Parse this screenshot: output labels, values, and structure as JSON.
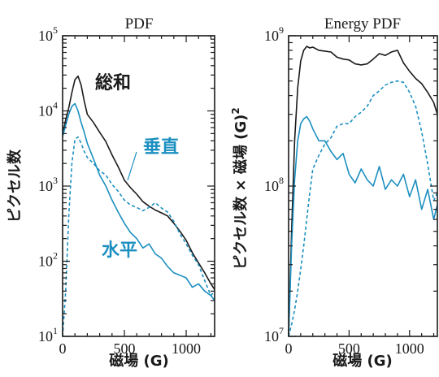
{
  "colors": {
    "black": "#1a1a1a",
    "blue": "#1b8fc0"
  },
  "chart_data": [
    {
      "type": "line",
      "title": "PDF",
      "xlabel": "磁場 (G)",
      "ylabel": "ピクセル数",
      "xlim": [
        0,
        1230
      ],
      "ylim": [
        10,
        100000
      ],
      "log_y": true,
      "x_ticks": [
        "0",
        "500",
        "1000"
      ],
      "y_ticks": [
        {
          "base": "10",
          "exp": "1"
        },
        {
          "base": "10",
          "exp": "2"
        },
        {
          "base": "10",
          "exp": "3"
        },
        {
          "base": "10",
          "exp": "4"
        },
        {
          "base": "10",
          "exp": "5"
        }
      ],
      "annotations": {
        "total": "総和",
        "vertical": "垂直",
        "horizontal": "水平"
      },
      "series": [
        {
          "name": "総和",
          "style": "solid",
          "color": "black",
          "x": [
            0,
            25,
            50,
            75,
            100,
            125,
            150,
            175,
            200,
            250,
            300,
            350,
            400,
            450,
            500,
            550,
            600,
            650,
            700,
            750,
            800,
            850,
            900,
            950,
            1000,
            1050,
            1100,
            1150,
            1200,
            1230
          ],
          "values": [
            4800,
            7600,
            11000,
            17500,
            26000,
            29000,
            22000,
            13500,
            9000,
            7000,
            5200,
            3900,
            2600,
            1800,
            1200,
            950,
            780,
            620,
            540,
            480,
            440,
            400,
            320,
            250,
            190,
            130,
            95,
            70,
            50,
            42
          ]
        },
        {
          "name": "垂直",
          "style": "dashed",
          "color": "blue",
          "x": [
            0,
            25,
            50,
            75,
            100,
            125,
            150,
            175,
            200,
            250,
            300,
            350,
            400,
            450,
            500,
            550,
            600,
            650,
            700,
            750,
            800,
            850,
            900,
            950,
            1000,
            1050,
            1100,
            1150,
            1200,
            1230
          ],
          "values": [
            10,
            40,
            400,
            2000,
            4200,
            4500,
            3700,
            2900,
            2400,
            2000,
            1600,
            1400,
            1050,
            850,
            650,
            560,
            520,
            470,
            520,
            600,
            510,
            450,
            340,
            230,
            170,
            120,
            90,
            55,
            35,
            40
          ]
        },
        {
          "name": "水平",
          "style": "solid",
          "color": "blue",
          "x": [
            0,
            25,
            50,
            75,
            100,
            125,
            150,
            175,
            200,
            250,
            300,
            350,
            400,
            450,
            500,
            550,
            600,
            650,
            700,
            750,
            800,
            850,
            900,
            950,
            1000,
            1050,
            1100,
            1150,
            1200,
            1230
          ],
          "values": [
            4500,
            6500,
            9000,
            11500,
            12500,
            10000,
            7000,
            5200,
            3700,
            2300,
            1400,
            1000,
            650,
            450,
            320,
            240,
            200,
            150,
            170,
            125,
            110,
            85,
            70,
            65,
            60,
            45,
            50,
            40,
            35,
            30
          ]
        }
      ]
    },
    {
      "type": "line",
      "title": "Energy PDF",
      "xlabel": "磁場 (G)",
      "ylabel": "ピクセル数 × 磁場 (G)",
      "ylabel_exp": "2",
      "xlim": [
        0,
        1230
      ],
      "ylim": [
        10000000,
        1000000000
      ],
      "log_y": true,
      "x_ticks": [
        "0",
        "500",
        "1000"
      ],
      "y_ticks": [
        {
          "base": "10",
          "exp": "7"
        },
        {
          "base": "10",
          "exp": "8"
        },
        {
          "base": "10",
          "exp": "9"
        }
      ],
      "series": [
        {
          "name": "総和",
          "style": "solid",
          "color": "black",
          "x": [
            0,
            25,
            50,
            75,
            100,
            125,
            150,
            175,
            200,
            250,
            300,
            350,
            400,
            450,
            500,
            550,
            600,
            650,
            700,
            750,
            800,
            850,
            900,
            950,
            1000,
            1050,
            1100,
            1150,
            1200,
            1230
          ],
          "values": [
            10000000,
            50000000,
            200000000,
            450000000,
            680000000,
            800000000,
            850000000,
            830000000,
            840000000,
            800000000,
            790000000,
            780000000,
            720000000,
            700000000,
            690000000,
            650000000,
            640000000,
            650000000,
            700000000,
            760000000,
            740000000,
            780000000,
            800000000,
            660000000,
            580000000,
            520000000,
            480000000,
            420000000,
            360000000,
            300000000
          ]
        },
        {
          "name": "垂直",
          "style": "dashed",
          "color": "blue",
          "x": [
            0,
            25,
            50,
            75,
            100,
            125,
            150,
            175,
            200,
            250,
            300,
            350,
            400,
            450,
            500,
            550,
            600,
            650,
            700,
            750,
            800,
            850,
            900,
            950,
            1000,
            1050,
            1100,
            1150,
            1200,
            1230
          ],
          "values": [
            10000000,
            12000000,
            15000000,
            20000000,
            28000000,
            40000000,
            60000000,
            90000000,
            130000000,
            160000000,
            190000000,
            210000000,
            250000000,
            260000000,
            260000000,
            290000000,
            310000000,
            340000000,
            400000000,
            430000000,
            470000000,
            490000000,
            500000000,
            490000000,
            420000000,
            340000000,
            230000000,
            140000000,
            80000000,
            90000000
          ]
        },
        {
          "name": "水平",
          "style": "solid",
          "color": "blue",
          "x": [
            0,
            25,
            50,
            75,
            100,
            125,
            150,
            175,
            200,
            250,
            300,
            350,
            400,
            450,
            500,
            550,
            600,
            650,
            700,
            750,
            800,
            850,
            900,
            950,
            1000,
            1050,
            1100,
            1150,
            1200,
            1230
          ],
          "values": [
            10000000,
            40000000,
            110000000,
            200000000,
            260000000,
            280000000,
            290000000,
            270000000,
            240000000,
            200000000,
            200000000,
            170000000,
            150000000,
            165000000,
            120000000,
            105000000,
            130000000,
            110000000,
            100000000,
            135000000,
            95000000,
            110000000,
            100000000,
            120000000,
            85000000,
            110000000,
            70000000,
            95000000,
            60000000,
            75000000
          ]
        }
      ]
    }
  ]
}
